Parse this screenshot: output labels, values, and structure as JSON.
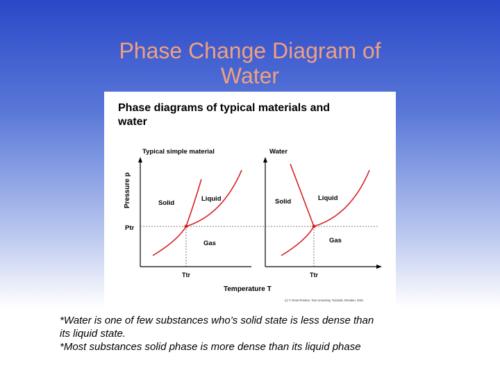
{
  "slide": {
    "title_line1": "Phase Change Diagram of",
    "title_line2": "Water"
  },
  "diagram": {
    "heading_line1": "Phase diagrams of typical materials and",
    "heading_line2": "water",
    "left_panel_title": "Typical simple material",
    "right_panel_title": "Water",
    "y_axis_label": "Pressure p",
    "x_axis_label": "Temperature T",
    "triple_pressure_label": "Ptr",
    "left_triple_temp_label": "Ttr",
    "right_triple_temp_label": "Ttr",
    "phase_labels": {
      "solid": "Solid",
      "liquid": "Liquid",
      "gas": "Gas"
    },
    "credit": "(c) T. Rose-Preston, Tom University, Tutorials, Dresden, 2001",
    "colors": {
      "curve": "#d82020",
      "axis": "#000000",
      "dashed": "#555555"
    }
  },
  "notes": {
    "line1": "*Water is one of few substances who’s solid state is less dense than",
    "line2": "its liquid state.",
    "line3": "*Most substances solid phase is more dense than its liquid phase"
  }
}
